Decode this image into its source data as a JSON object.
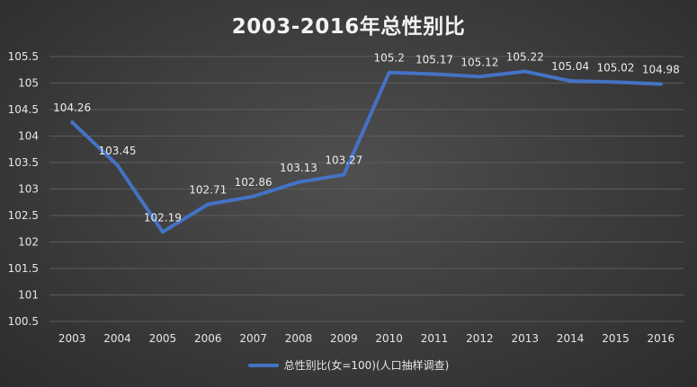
{
  "chart_data": {
    "type": "line",
    "title": "2003-2016年总性别比",
    "categories": [
      "2003",
      "2004",
      "2005",
      "2006",
      "2007",
      "2008",
      "2009",
      "2010",
      "2011",
      "2012",
      "2013",
      "2014",
      "2015",
      "2016"
    ],
    "series": [
      {
        "name": "总性别比(女=100)(人口抽样调查)",
        "values": [
          104.26,
          103.45,
          102.19,
          102.71,
          102.86,
          103.13,
          103.27,
          105.2,
          105.17,
          105.12,
          105.22,
          105.04,
          105.02,
          104.98
        ],
        "labels": [
          "104.26",
          "103.45",
          "102.19",
          "102.71",
          "102.86",
          "103.13",
          "103.27",
          "105.2",
          "105.17",
          "105.12",
          "105.22",
          "105.04",
          "105.02",
          "104.98"
        ],
        "color": "#4472c4"
      }
    ],
    "ylim": [
      100.5,
      105.5
    ],
    "y_ticks": [
      100.5,
      101,
      101.5,
      102,
      102.5,
      103,
      103.5,
      104,
      104.5,
      105,
      105.5
    ],
    "y_tick_labels": [
      "100.5",
      "101",
      "101.5",
      "102",
      "102.5",
      "103",
      "103.5",
      "104",
      "104.5",
      "105",
      "105.5"
    ],
    "xlabel": "",
    "ylabel": "",
    "grid": true,
    "legend_position": "bottom"
  }
}
